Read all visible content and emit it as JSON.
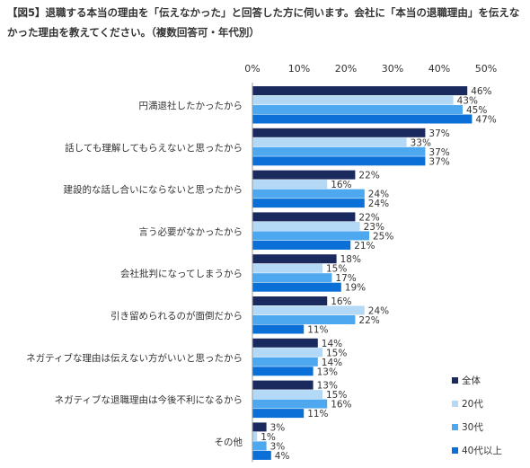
{
  "title": "【図5】退職する本当の理由を「伝えなかった」と回答した方に伺います。会社に「本当の退職理由」を伝えなかった理由を教えてください。（複数回答可・年代別）",
  "chart_data": {
    "type": "bar",
    "orientation": "horizontal",
    "x_ticks": [
      "0%",
      "10%",
      "20%",
      "30%",
      "40%",
      "50%"
    ],
    "xlim": [
      0,
      50
    ],
    "grid": false,
    "legend_position": "bottom-right",
    "categories": [
      "円満退社したかったから",
      "話しても理解してもらえないと思ったから",
      "建設的な話し合いにならないと思ったから",
      "言う必要がなかったから",
      "会社批判になってしまうから",
      "引き留められるのが面倒だから",
      "ネガティブな理由は伝えない方がいいと思ったから",
      "ネガティブな退職理由は今後不利になるから",
      "その他"
    ],
    "series": [
      {
        "name": "全体",
        "color": "#1a2a5e",
        "values": [
          46,
          37,
          22,
          22,
          18,
          16,
          14,
          13,
          3
        ]
      },
      {
        "name": "20代",
        "color": "#b3d9f7",
        "values": [
          43,
          33,
          16,
          23,
          15,
          24,
          15,
          15,
          1
        ]
      },
      {
        "name": "30代",
        "color": "#4da8ef",
        "values": [
          45,
          37,
          24,
          25,
          17,
          22,
          14,
          16,
          3
        ]
      },
      {
        "name": "40代以上",
        "color": "#0a6fd6",
        "values": [
          47,
          37,
          24,
          21,
          19,
          11,
          13,
          11,
          4
        ]
      }
    ],
    "value_suffix": "%"
  }
}
